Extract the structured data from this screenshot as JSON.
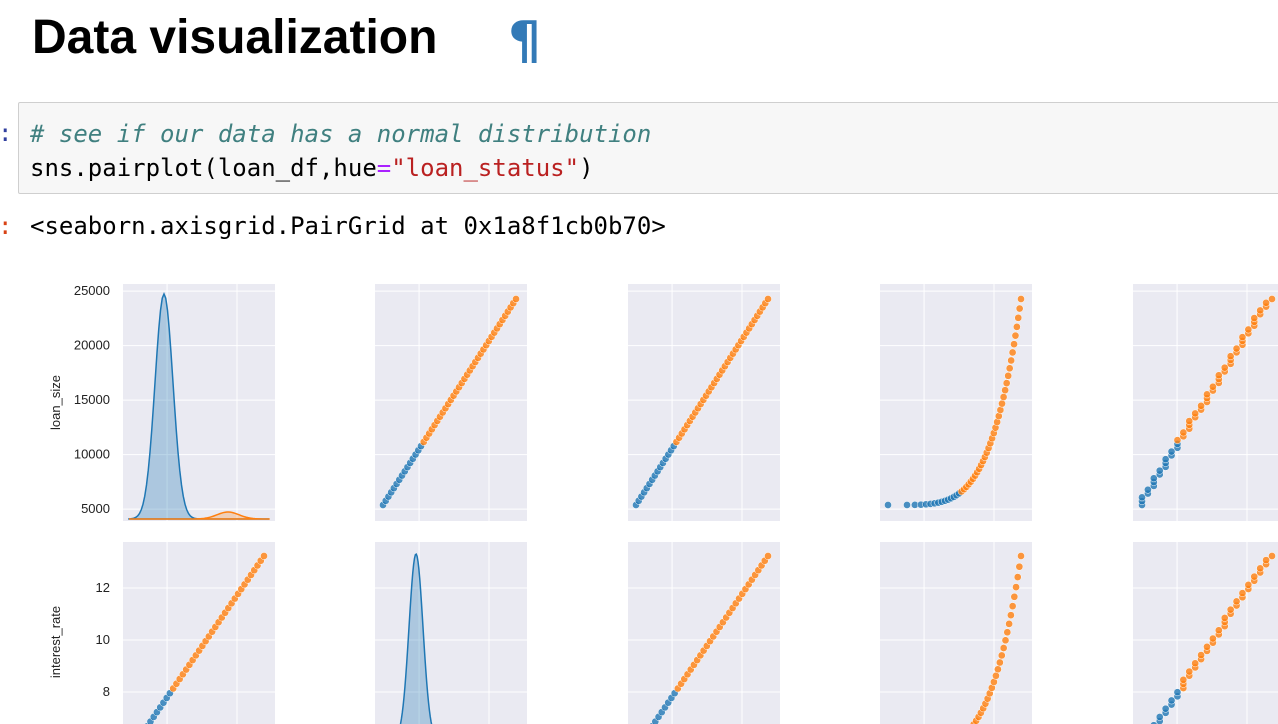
{
  "heading": {
    "title": "Data visualization",
    "anchor": "¶"
  },
  "cell_input": {
    "prompt": ":",
    "comment": "# see if our data has a normal distribution",
    "call_prefix": "sns.pairplot(loan_df,hue",
    "operator": "=",
    "string": "\"loan_status\"",
    "close": ")"
  },
  "cell_output": {
    "prompt": ":",
    "text": "<seaborn.axisgrid.PairGrid at 0x1a8f1cb0b70>"
  },
  "colors": {
    "class0": "#1f77b4",
    "class1": "#ff7f0e",
    "panel_bg": "#eaeaf2",
    "grid": "#ffffff"
  },
  "chart_data": {
    "type": "scatter",
    "variables": [
      "loan_size",
      "interest_rate"
    ],
    "row_labels": [
      "loan_size",
      "interest_rate"
    ],
    "row0_ticks": [
      25000,
      20000,
      15000,
      10000,
      5000
    ],
    "row1_ticks": [
      12,
      10,
      8
    ],
    "hue": "loan_status",
    "grid": true,
    "legend": "none"
  }
}
